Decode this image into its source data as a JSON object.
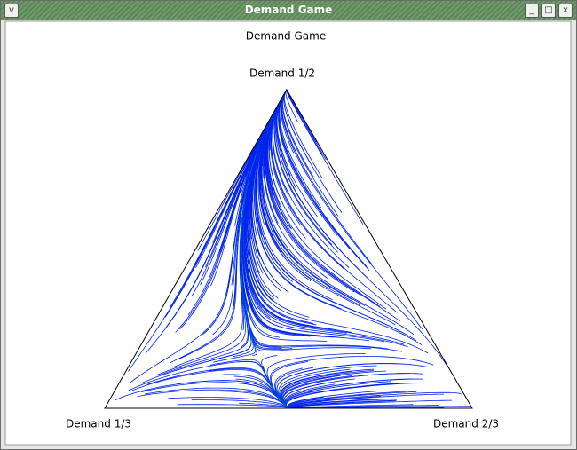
{
  "window": {
    "title": "Demand Game"
  },
  "plot": {
    "title": "Demand Game",
    "top_label": "Demand 1/2",
    "left_label": "Demand 1/3",
    "right_label": "Demand 2/3"
  }
}
